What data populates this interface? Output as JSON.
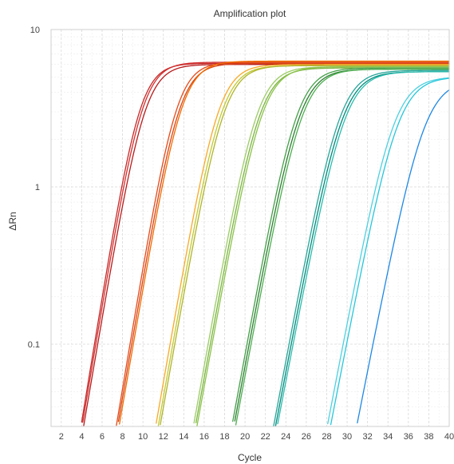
{
  "chart_data": {
    "type": "line",
    "title": "Amplification plot",
    "xlabel": "Cycle",
    "ylabel": "ΔRn",
    "x_scale": "linear",
    "y_scale": "log",
    "xlim": [
      1,
      40
    ],
    "ylim": [
      0.03,
      10
    ],
    "x_ticks": [
      2,
      4,
      6,
      8,
      10,
      12,
      14,
      16,
      18,
      20,
      22,
      24,
      26,
      28,
      30,
      32,
      34,
      36,
      38,
      40
    ],
    "y_ticks": [
      {
        "value": 0.1,
        "label": "0.1"
      },
      {
        "value": 1,
        "label": "1"
      },
      {
        "value": 10,
        "label": "10"
      }
    ],
    "grid": true,
    "legend": false,
    "series": [
      {
        "color": "#c62828",
        "plateau": 6.1,
        "midpoint": 9.7,
        "slope": 0.92
      },
      {
        "color": "#d32f2f",
        "plateau": 6.2,
        "midpoint": 9.95,
        "slope": 0.9
      },
      {
        "color": "#b71c1c",
        "plateau": 6.0,
        "midpoint": 10.2,
        "slope": 0.88
      },
      {
        "color": "#e64a19",
        "plateau": 6.2,
        "midpoint": 13.3,
        "slope": 0.9
      },
      {
        "color": "#d84315",
        "plateau": 6.1,
        "midpoint": 13.55,
        "slope": 0.88
      },
      {
        "color": "#ef6c00",
        "plateau": 6.3,
        "midpoint": 13.8,
        "slope": 0.87
      },
      {
        "color": "#f9a825",
        "plateau": 6.0,
        "midpoint": 17.4,
        "slope": 0.86
      },
      {
        "color": "#c0ca33",
        "plateau": 5.9,
        "midpoint": 17.7,
        "slope": 0.85
      },
      {
        "color": "#afb42b",
        "plateau": 5.9,
        "midpoint": 17.95,
        "slope": 0.84
      },
      {
        "color": "#9ccc65",
        "plateau": 5.8,
        "midpoint": 21.2,
        "slope": 0.84
      },
      {
        "color": "#7cb342",
        "plateau": 5.7,
        "midpoint": 21.45,
        "slope": 0.83
      },
      {
        "color": "#8bc34a",
        "plateau": 5.8,
        "midpoint": 21.7,
        "slope": 0.82
      },
      {
        "color": "#43a047",
        "plateau": 5.7,
        "midpoint": 25.1,
        "slope": 0.82
      },
      {
        "color": "#2e7d32",
        "plateau": 5.6,
        "midpoint": 25.35,
        "slope": 0.81
      },
      {
        "color": "#4caf50",
        "plateau": 5.6,
        "midpoint": 25.6,
        "slope": 0.8
      },
      {
        "color": "#26a69a",
        "plateau": 5.5,
        "midpoint": 29.3,
        "slope": 0.8
      },
      {
        "color": "#00897b",
        "plateau": 5.4,
        "midpoint": 29.55,
        "slope": 0.79
      },
      {
        "color": "#2bbbad",
        "plateau": 5.4,
        "midpoint": 29.8,
        "slope": 0.78
      },
      {
        "color": "#4dd0e1",
        "plateau": 5.0,
        "midpoint": 34.6,
        "slope": 0.78
      },
      {
        "color": "#26c6da",
        "plateau": 5.0,
        "midpoint": 35.0,
        "slope": 0.77
      },
      {
        "color": "#1e88e5",
        "plateau": 4.8,
        "midpoint": 37.6,
        "slope": 0.76
      }
    ]
  }
}
